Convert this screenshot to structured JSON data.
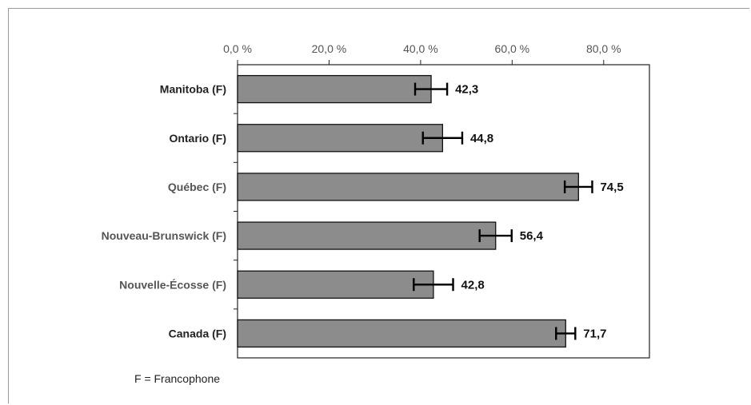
{
  "chart_data": {
    "type": "bar",
    "orientation": "horizontal",
    "title": "",
    "xlabel": "",
    "ylabel": "",
    "xlim": [
      0,
      90
    ],
    "ticks": [
      {
        "value": 0,
        "label": "0,0 %"
      },
      {
        "value": 20,
        "label": "20,0 %"
      },
      {
        "value": 40,
        "label": "40,0 %"
      },
      {
        "value": 60,
        "label": "60,0 %"
      },
      {
        "value": 80,
        "label": "80,0 %"
      }
    ],
    "categories": [
      "Manitoba (F)",
      "Ontario (F)",
      "Québec (F)",
      "Nouveau-Brunswick (F)",
      "Nouvelle-Écosse (F)",
      "Canada (F)"
    ],
    "values": [
      42.3,
      44.8,
      74.5,
      56.4,
      42.8,
      71.7
    ],
    "value_labels": [
      "42,3",
      "44,8",
      "74,5",
      "56,4",
      "42,8",
      "71,7"
    ],
    "error_half_width": [
      3.5,
      4.3,
      3.0,
      3.5,
      4.3,
      2.1
    ],
    "bar_color": "#8c8c8c",
    "grid": false,
    "footnote": "F = Francophone"
  }
}
